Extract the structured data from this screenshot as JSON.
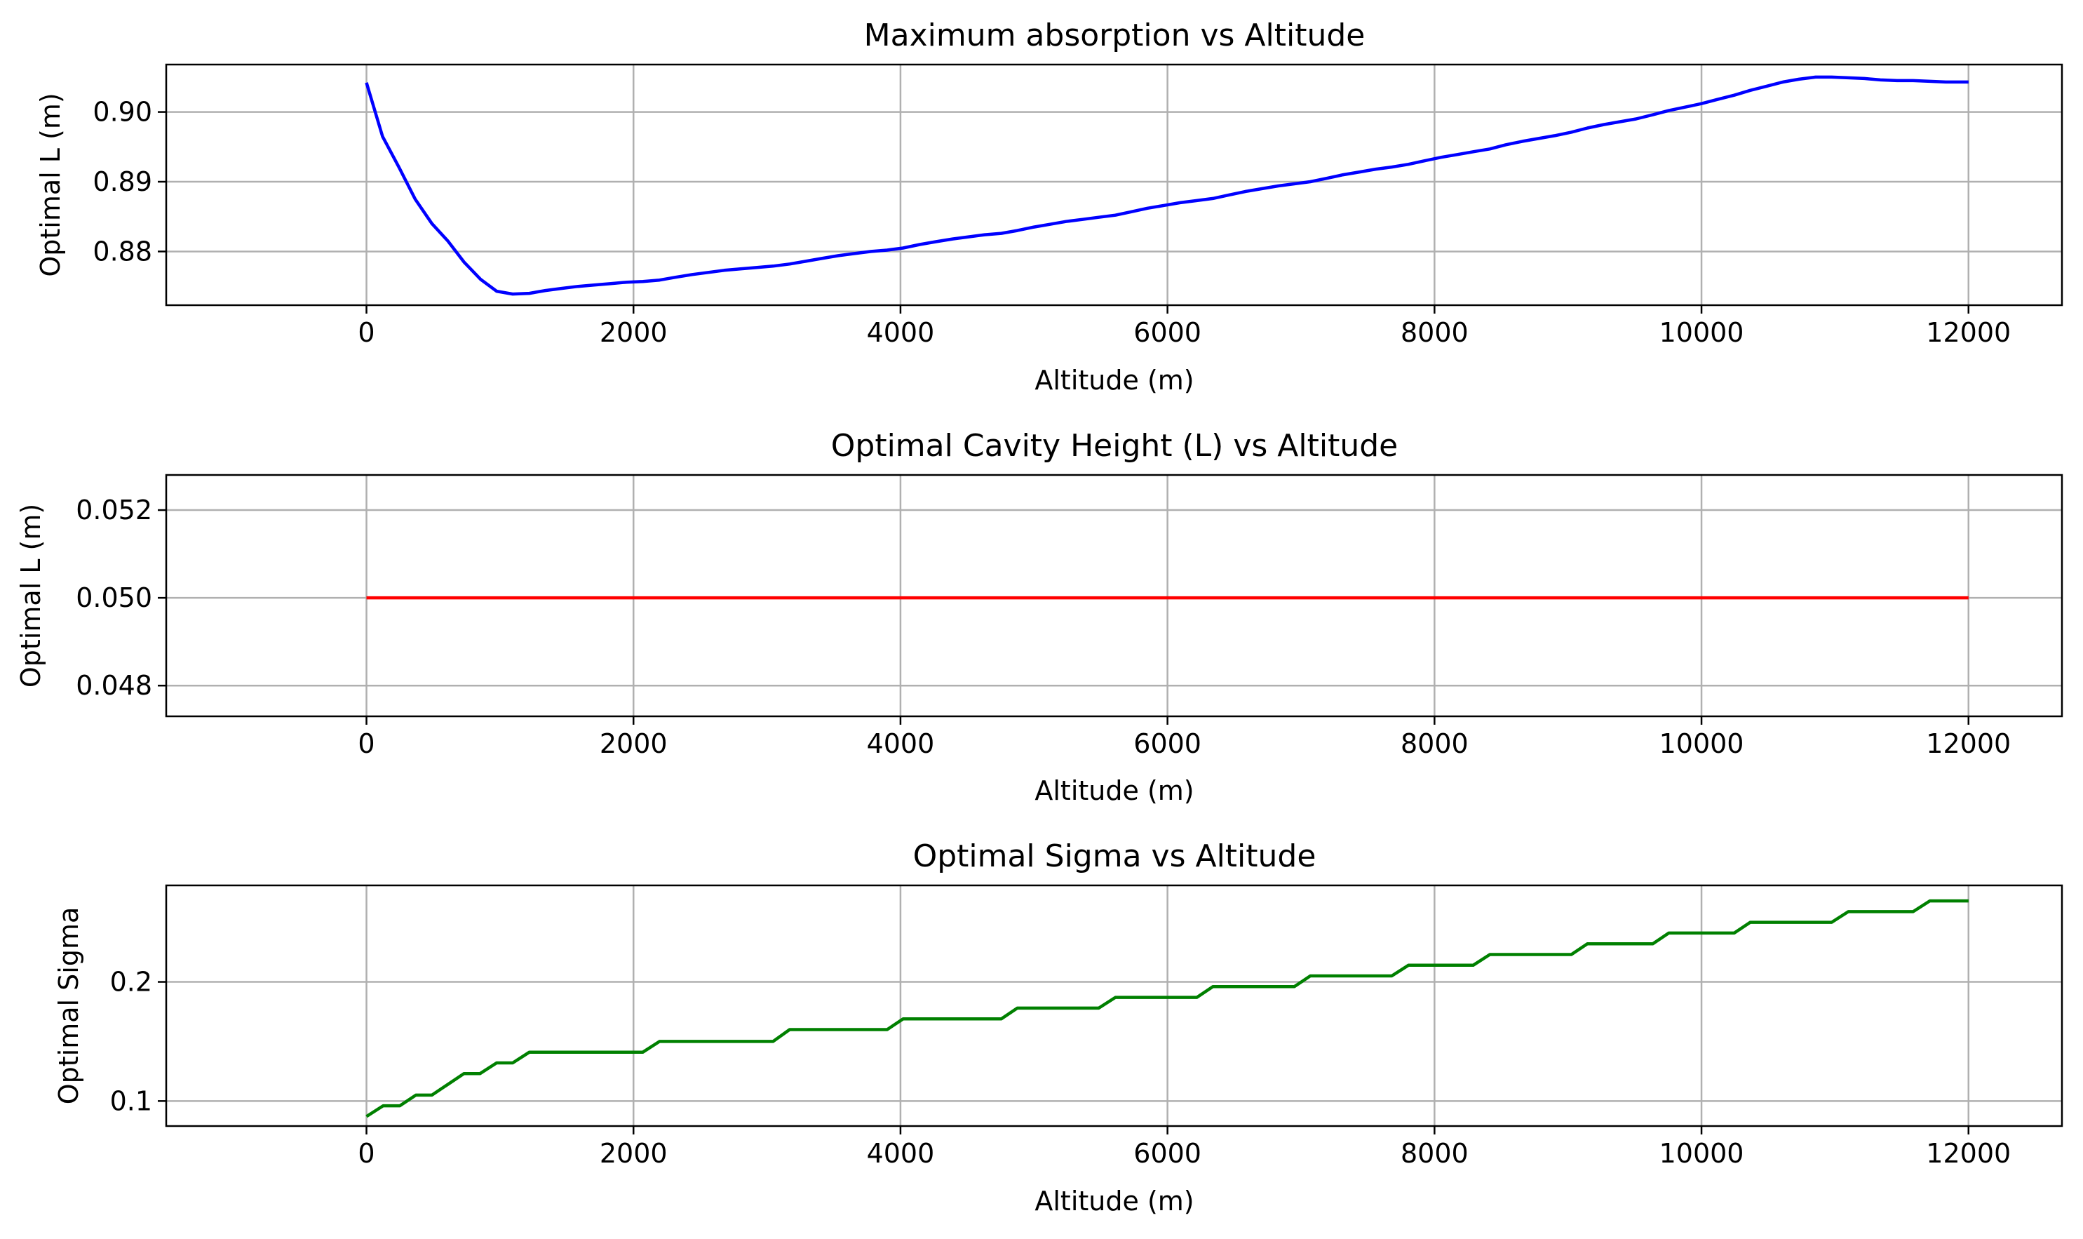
{
  "chart_data": [
    {
      "type": "line",
      "title": "Maximum absorption vs Altitude",
      "xlabel": "Altitude (m)",
      "ylabel": "Optimal L (m)",
      "xlim": [
        -1500,
        12700
      ],
      "ylim": [
        0.8723,
        0.9068
      ],
      "xticks": [
        0,
        2000,
        4000,
        6000,
        8000,
        10000,
        12000
      ],
      "yticks": [
        0.88,
        0.89,
        0.9
      ],
      "xtick_labels": [
        "0",
        "2000",
        "4000",
        "6000",
        "8000",
        "10000",
        "12000"
      ],
      "ytick_labels": [
        "0.88",
        "0.89",
        "0.90"
      ],
      "grid": true,
      "series": [
        {
          "color": "#0000ff",
          "x": [
            0,
            120,
            245,
            365,
            490,
            610,
            730,
            855,
            975,
            1095,
            1220,
            1340,
            1460,
            1585,
            1705,
            1830,
            1950,
            2070,
            2195,
            2315,
            2440,
            2560,
            2680,
            2800,
            2925,
            3045,
            3170,
            3290,
            3410,
            3535,
            3655,
            3780,
            3900,
            4020,
            4145,
            4265,
            4390,
            4510,
            4630,
            4755,
            4875,
            5000,
            5120,
            5240,
            5365,
            5485,
            5610,
            5730,
            5850,
            5975,
            6095,
            6220,
            6340,
            6460,
            6585,
            6705,
            6830,
            6950,
            7070,
            7195,
            7315,
            7440,
            7560,
            7680,
            7805,
            7925,
            8050,
            8170,
            8290,
            8415,
            8535,
            8660,
            8780,
            8900,
            9025,
            9145,
            9270,
            9390,
            9510,
            9635,
            9755,
            9880,
            10000,
            10120,
            10245,
            10365,
            10490,
            10610,
            10730,
            10855,
            10975,
            11100,
            11220,
            11340,
            11465,
            11585,
            11710,
            11830,
            11950,
            12000
          ],
          "values": [
            0.9042,
            0.8965,
            0.892,
            0.8875,
            0.884,
            0.8815,
            0.8785,
            0.876,
            0.8743,
            0.8739,
            0.874,
            0.8744,
            0.8747,
            0.875,
            0.8752,
            0.8754,
            0.8756,
            0.8757,
            0.8759,
            0.8763,
            0.8767,
            0.877,
            0.8773,
            0.8775,
            0.8777,
            0.8779,
            0.8782,
            0.8786,
            0.879,
            0.8794,
            0.8797,
            0.88,
            0.8802,
            0.8805,
            0.881,
            0.8814,
            0.8818,
            0.8821,
            0.8824,
            0.8826,
            0.883,
            0.8835,
            0.8839,
            0.8843,
            0.8846,
            0.8849,
            0.8852,
            0.8857,
            0.8862,
            0.8866,
            0.887,
            0.8873,
            0.8876,
            0.8881,
            0.8886,
            0.889,
            0.8894,
            0.8897,
            0.89,
            0.8905,
            0.891,
            0.8914,
            0.8918,
            0.8921,
            0.8925,
            0.893,
            0.8935,
            0.8939,
            0.8943,
            0.8947,
            0.8953,
            0.8958,
            0.8962,
            0.8966,
            0.8971,
            0.8977,
            0.8982,
            0.8986,
            0.899,
            0.8996,
            0.9002,
            0.9007,
            0.9012,
            0.9018,
            0.9024,
            0.9031,
            0.9037,
            0.9043,
            0.9047,
            0.905,
            0.905,
            0.9049,
            0.9048,
            0.9046,
            0.9045,
            0.9045,
            0.9044,
            0.9043,
            0.9043,
            0.9043
          ]
        }
      ]
    },
    {
      "type": "line",
      "title": "Optimal Cavity Height (L) vs Altitude",
      "xlabel": "Altitude (m)",
      "ylabel": "Optimal L (m)",
      "xlim": [
        -1500,
        12700
      ],
      "ylim": [
        0.0473,
        0.0528
      ],
      "xticks": [
        0,
        2000,
        4000,
        6000,
        8000,
        10000,
        12000
      ],
      "yticks": [
        0.048,
        0.05,
        0.052
      ],
      "xtick_labels": [
        "0",
        "2000",
        "4000",
        "6000",
        "8000",
        "10000",
        "12000"
      ],
      "ytick_labels": [
        "0.048",
        "0.050",
        "0.052"
      ],
      "grid": true,
      "series": [
        {
          "color": "#ff0000",
          "x": [
            0,
            12000
          ],
          "values": [
            0.05,
            0.05
          ]
        }
      ]
    },
    {
      "type": "line",
      "title": "Optimal Sigma vs Altitude",
      "xlabel": "Altitude (m)",
      "ylabel": "Optimal Sigma",
      "xlim": [
        -1500,
        12700
      ],
      "ylim": [
        0.079,
        0.281
      ],
      "xticks": [
        0,
        2000,
        4000,
        6000,
        8000,
        10000,
        12000
      ],
      "yticks": [
        0.1,
        0.2
      ],
      "xtick_labels": [
        "0",
        "2000",
        "4000",
        "6000",
        "8000",
        "10000",
        "12000"
      ],
      "ytick_labels": [
        "0.1",
        "0.2"
      ],
      "grid": true,
      "series": [
        {
          "color": "#008000",
          "x": [
            0,
            125,
            250,
            370,
            490,
            610,
            730,
            850,
            975,
            1095,
            1220,
            1340,
            2070,
            2195,
            2315,
            3045,
            3170,
            3290,
            3900,
            4020,
            4145,
            4755,
            4875,
            5000,
            5485,
            5610,
            5730,
            6220,
            6340,
            6460,
            6950,
            7070,
            7195,
            7680,
            7805,
            7925,
            8290,
            8415,
            8535,
            9025,
            9145,
            9270,
            9635,
            9755,
            9880,
            10245,
            10365,
            10490,
            10975,
            11100,
            11220,
            11585,
            11710,
            11830,
            12000
          ],
          "values": [
            0.087,
            0.096,
            0.096,
            0.105,
            0.105,
            0.114,
            0.123,
            0.123,
            0.132,
            0.132,
            0.141,
            0.141,
            0.141,
            0.15,
            0.15,
            0.15,
            0.16,
            0.16,
            0.16,
            0.169,
            0.169,
            0.169,
            0.178,
            0.178,
            0.178,
            0.187,
            0.187,
            0.187,
            0.196,
            0.196,
            0.196,
            0.205,
            0.205,
            0.205,
            0.214,
            0.214,
            0.214,
            0.223,
            0.223,
            0.223,
            0.232,
            0.232,
            0.232,
            0.241,
            0.241,
            0.241,
            0.25,
            0.25,
            0.25,
            0.259,
            0.259,
            0.259,
            0.268,
            0.268,
            0.268
          ]
        }
      ]
    }
  ]
}
